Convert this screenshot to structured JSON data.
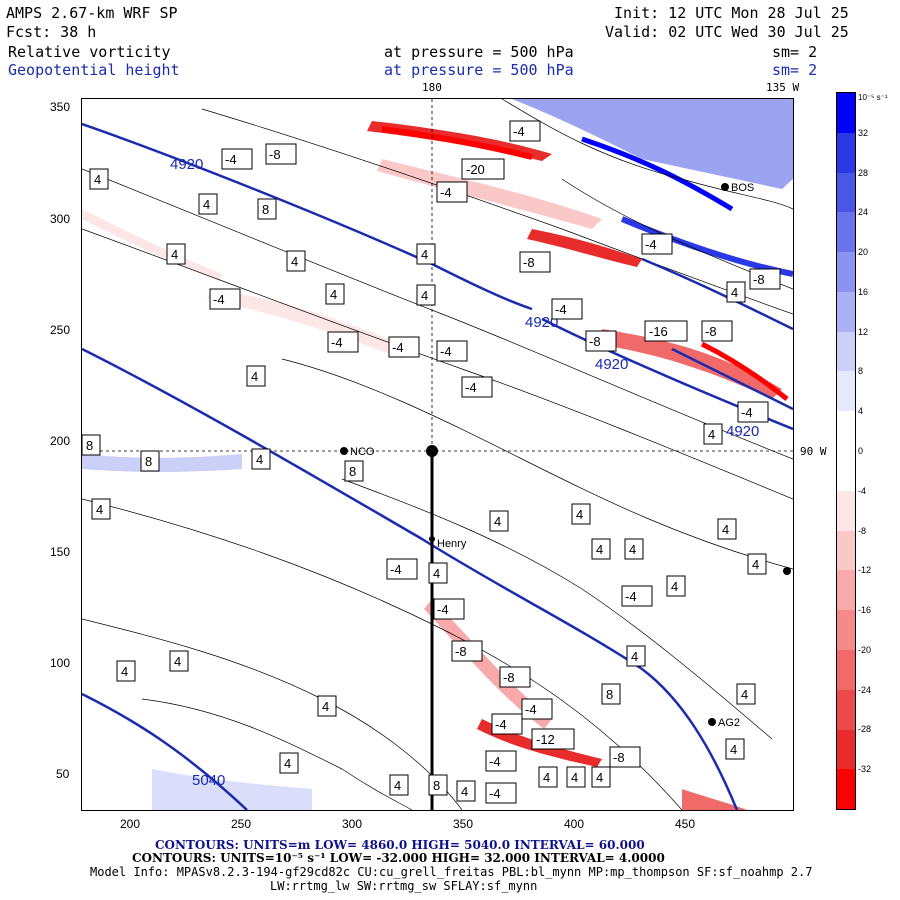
{
  "header": {
    "model": "AMPS 2.67-km WRF SP",
    "forecast": "Fcst:    38 h",
    "init": "Init: 12 UTC Mon 28 Jul 25",
    "valid": "Valid: 02 UTC Wed 30 Jul 25",
    "field1": "Relative vorticity",
    "field1_pressure": "at pressure =  500 hPa",
    "field1_sm": "sm= 2",
    "field2": "Geopotential height",
    "field2_pressure": "at pressure =  500 hPa",
    "field2_sm": "sm= 2"
  },
  "map": {
    "top_label_180": "180",
    "top_label_135w": "135 W",
    "right_label_90w": "90 W",
    "x_ticks": [
      "200",
      "250",
      "300",
      "350",
      "400",
      "450"
    ],
    "y_ticks": [
      "350",
      "300",
      "250",
      "200",
      "150",
      "100",
      "50"
    ],
    "stations": [
      {
        "name": "NCO"
      },
      {
        "name": "Henry"
      },
      {
        "name": "BOS"
      },
      {
        "name": "AG2"
      }
    ],
    "height_contour_labels": [
      "4920",
      "4920",
      "4920",
      "4920",
      "5040"
    ],
    "vorticity_labels": [
      "4",
      "-4",
      "8",
      "-8",
      "-16",
      "-12",
      "-20"
    ]
  },
  "colorbar": {
    "unit": "10⁻⁵ s⁻¹",
    "labels": [
      "32",
      "28",
      "24",
      "20",
      "16",
      "12",
      "8",
      "4",
      "0",
      "-4",
      "-8",
      "-12",
      "-16",
      "-20",
      "-24",
      "-28",
      "-32"
    ],
    "colors": [
      "#0000ff",
      "#2b38e6",
      "#4a57e6",
      "#6a74ea",
      "#8a93ef",
      "#aab1f4",
      "#cbd0f8",
      "#e6e8fc",
      "#ffffff",
      "#ffffff",
      "#fde6e6",
      "#fbc8c8",
      "#f8a9a9",
      "#f48a8a",
      "#f06a6a",
      "#ec4a4a",
      "#e82b2b",
      "#ff0000"
    ]
  },
  "footer": {
    "line1": "CONTOURS:  UNITS=m  LOW=   4860.0          HIGH=  5040.0          INTERVAL=   60.000",
    "line2": "CONTOURS:  UNITS=10⁻⁵ s⁻¹  LOW=  -32.000          HIGH=  32.000          INTERVAL=    4.0000",
    "line3": "Model Info: MPASv8.2.3-194-gf29cd82c CU:cu_grell_freitas PBL:bl_mynn MP:mp_thompson SF:sf_noahmp 2.7",
    "line4": "LW:rrtmg_lw SW:rrtmg_sw SFLAY:sf_mynn"
  }
}
